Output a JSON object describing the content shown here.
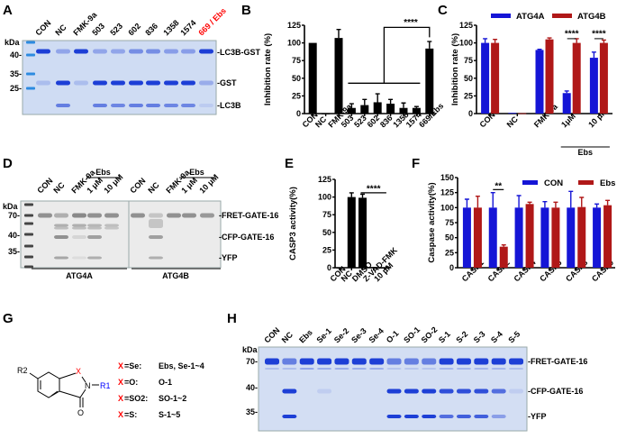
{
  "panels": {
    "A": "A",
    "B": "B",
    "C": "C",
    "D": "D",
    "E": "E",
    "F": "F",
    "G": "G",
    "H": "H"
  },
  "gel_a": {
    "kda": "kDa",
    "markers": [
      "40",
      "35",
      "25"
    ],
    "lanes": [
      "CON",
      "NC",
      "FMK-9a",
      "503",
      "523",
      "602",
      "836",
      "1358",
      "1574",
      "669 / Ebs"
    ],
    "highlight_color": "#ff0000",
    "bands": [
      "LC3B-GST",
      "GST",
      "LC3B"
    ]
  },
  "gel_d": {
    "kda": "kDa",
    "markers": [
      "70",
      "40",
      "35"
    ],
    "lanes_a": [
      "CON",
      "NC",
      "FMK-9a",
      "1 μM",
      "10 μM"
    ],
    "lanes_b": [
      "CON",
      "NC",
      "FMK-9a",
      "1 μM",
      "10 μM"
    ],
    "ebs": "Ebs",
    "groups": [
      "ATG4A",
      "ATG4B"
    ],
    "bands": [
      "FRET-GATE-16",
      "CFP-GATE-16",
      "YFP"
    ]
  },
  "gel_h": {
    "kda": "kDa",
    "markers": [
      "70",
      "40",
      "35"
    ],
    "lanes": [
      "CON",
      "NC",
      "Ebs",
      "Se-1",
      "Se-2",
      "Se-3",
      "Se-4",
      "O-1",
      "SO-1",
      "SO-2",
      "S-1",
      "S-2",
      "S-3",
      "S-4",
      "S-5"
    ],
    "bands": [
      "FRET-GATE-16",
      "CFP-GATE-16",
      "YFP"
    ]
  },
  "structure": {
    "r2": "R2",
    "x": "X",
    "n": "N",
    "o": "O",
    "r1": "R1",
    "rows": [
      {
        "x": "X",
        "eq": "=Se:",
        "compounds": "Ebs, Se-1~4"
      },
      {
        "x": "X",
        "eq": "=O:",
        "compounds": "O-1"
      },
      {
        "x": "X",
        "eq": "=SO2:",
        "compounds": "SO-1~2"
      },
      {
        "x": "X",
        "eq": "=S:",
        "compounds": "S-1~5"
      }
    ],
    "x_color": "#ff0000",
    "r1_color": "#0000ff"
  },
  "chart_data": [
    {
      "id": "B",
      "type": "bar",
      "ylabel": "Inhibition rate (%)",
      "ylim": [
        0,
        125
      ],
      "yticks": [
        0,
        25,
        50,
        75,
        100,
        125
      ],
      "categories": [
        "CON",
        "NC",
        "FMK-9a",
        "503",
        "523",
        "602",
        "836",
        "1358",
        "1574",
        "669/Ebs"
      ],
      "values": [
        100,
        0,
        107,
        8,
        12,
        16,
        14,
        8,
        8,
        92
      ],
      "errors": [
        0,
        0,
        12,
        6,
        8,
        12,
        6,
        7,
        2,
        10
      ],
      "color": "#000000",
      "annotation": "****"
    },
    {
      "id": "C",
      "type": "bar",
      "ylabel": "Inhibition rate (%)",
      "ylim": [
        0,
        125
      ],
      "yticks": [
        0,
        25,
        50,
        75,
        100,
        125
      ],
      "categories": [
        "CON",
        "NC",
        "FMK-9a",
        "1μM",
        "10 μM"
      ],
      "group_label": "Ebs",
      "series": [
        {
          "name": "ATG4A",
          "color": "#1515d6",
          "values": [
            100,
            1,
            90,
            29,
            79
          ],
          "errors": [
            6,
            0,
            1,
            3,
            8
          ]
        },
        {
          "name": "ATG4B",
          "color": "#b01818",
          "values": [
            100,
            0.5,
            105,
            100,
            100
          ],
          "errors": [
            5,
            0,
            2,
            6,
            4
          ]
        }
      ],
      "annotations": [
        "****",
        "****"
      ],
      "legend": "top"
    },
    {
      "id": "E",
      "type": "bar",
      "ylabel": "CASP3 activity(%)",
      "ylim": [
        0,
        125
      ],
      "yticks": [
        0,
        25,
        50,
        75,
        100,
        125
      ],
      "categories": [
        "CON",
        "NC",
        "DMSO",
        "Z-VAD-FMK",
        "10 μM"
      ],
      "values": [
        0,
        100,
        99,
        1,
        0
      ],
      "errors": [
        0,
        6,
        5,
        0,
        0
      ],
      "color": "#000000",
      "annotation": "****"
    },
    {
      "id": "F",
      "type": "bar",
      "ylabel": "Caspase activity(%)",
      "ylim": [
        0,
        150
      ],
      "yticks": [
        0,
        25,
        50,
        75,
        100,
        125,
        150
      ],
      "categories": [
        "CASP1",
        "CASP2",
        "CASP4",
        "CASP6",
        "CASP8",
        "CASP9"
      ],
      "series": [
        {
          "name": "CON",
          "color": "#1515d6",
          "values": [
            100,
            100,
            100,
            100,
            100,
            100
          ],
          "errors": [
            14,
            25,
            20,
            10,
            27,
            6
          ]
        },
        {
          "name": "Ebs",
          "color": "#b01818",
          "values": [
            100,
            35,
            106,
            100,
            101,
            104
          ],
          "errors": [
            19,
            3,
            3,
            9,
            16,
            8
          ]
        }
      ],
      "annotation": "**",
      "legend": "top-right"
    }
  ]
}
